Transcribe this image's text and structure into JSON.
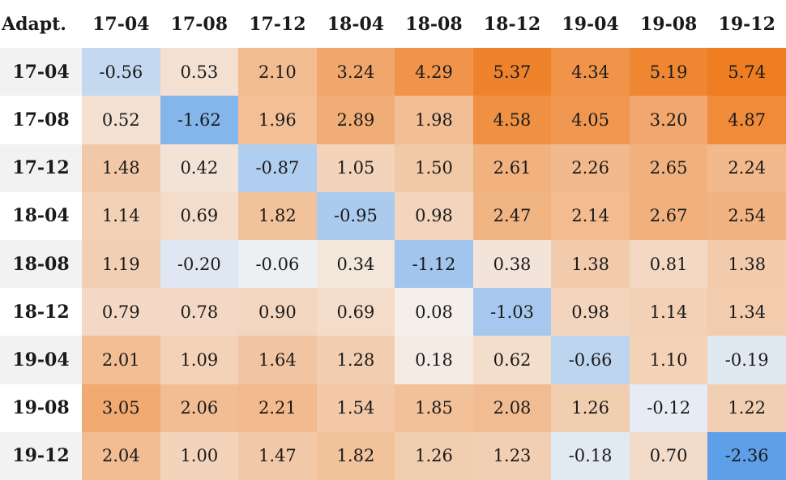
{
  "chart_data": {
    "type": "heatmap",
    "corner_label": "Adapt.",
    "columns": [
      "17-04",
      "17-08",
      "17-12",
      "18-04",
      "18-08",
      "18-12",
      "19-04",
      "19-08",
      "19-12"
    ],
    "rows": [
      "17-04",
      "17-08",
      "17-12",
      "18-04",
      "18-08",
      "18-12",
      "19-04",
      "19-08",
      "19-12"
    ],
    "values": [
      [
        -0.56,
        0.53,
        2.1,
        3.24,
        4.29,
        5.37,
        4.34,
        5.19,
        5.74
      ],
      [
        0.52,
        -1.62,
        1.96,
        2.89,
        1.98,
        4.58,
        4.05,
        3.2,
        4.87
      ],
      [
        1.48,
        0.42,
        -0.87,
        1.05,
        1.5,
        2.61,
        2.26,
        2.65,
        2.24
      ],
      [
        1.14,
        0.69,
        1.82,
        -0.95,
        0.98,
        2.47,
        2.14,
        2.67,
        2.54
      ],
      [
        1.19,
        -0.2,
        -0.06,
        0.34,
        -1.12,
        0.38,
        1.38,
        0.81,
        1.38
      ],
      [
        0.79,
        0.78,
        0.9,
        0.69,
        0.08,
        -1.03,
        0.98,
        1.14,
        1.34
      ],
      [
        2.01,
        1.09,
        1.64,
        1.28,
        0.18,
        0.62,
        -0.66,
        1.1,
        -0.19
      ],
      [
        3.05,
        2.06,
        2.21,
        1.54,
        1.85,
        2.08,
        1.26,
        -0.12,
        1.22
      ],
      [
        2.04,
        1.0,
        1.47,
        1.82,
        1.26,
        1.23,
        -0.18,
        0.7,
        -2.36
      ]
    ],
    "colors": {
      "positive": "#ef7d22",
      "negative": "#5b9ee8",
      "neutral": "#f4f4f4"
    },
    "color_scale": {
      "positive_max": 5.74,
      "negative_max": 2.4
    }
  }
}
